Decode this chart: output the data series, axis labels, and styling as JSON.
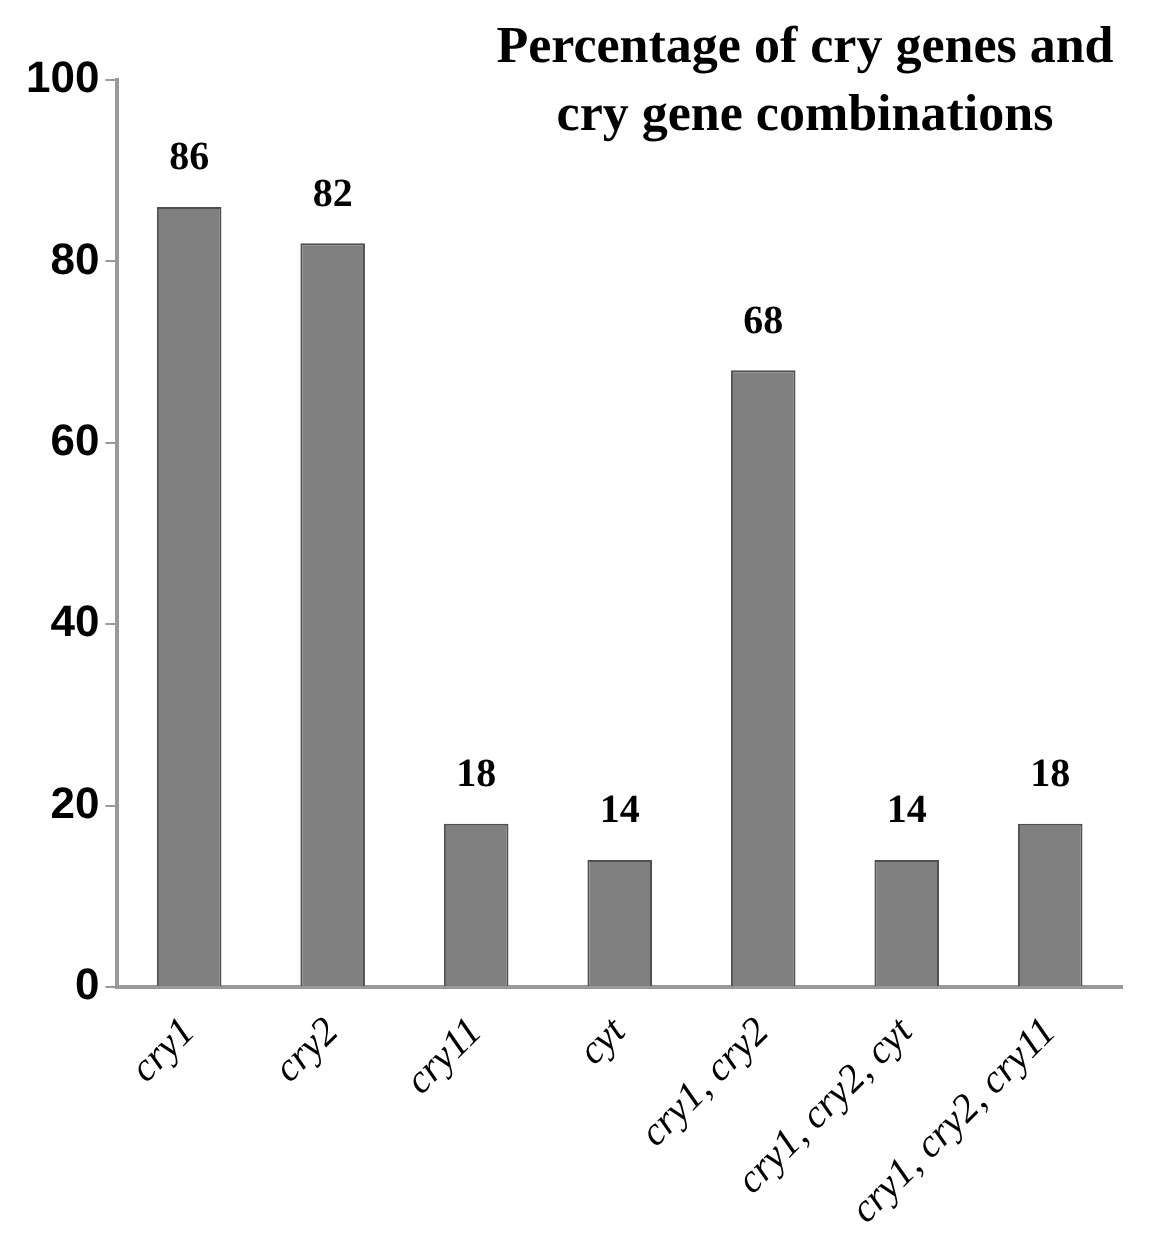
{
  "chart_data": {
    "type": "bar",
    "title": "Percentage of cry genes and cry gene combinations",
    "categories": [
      "cry1",
      "cry2",
      "cry11",
      "cyt",
      "cry1, cry2",
      "cry1, cry2, cyt",
      "cry1, cry2, cry11"
    ],
    "values": [
      86,
      82,
      18,
      14,
      68,
      14,
      18
    ],
    "color": "#808080",
    "ylim": [
      0,
      100
    ],
    "yticks": [
      0,
      20,
      40,
      60,
      80,
      100
    ],
    "grid": false,
    "legend": false,
    "data_labels": true
  }
}
